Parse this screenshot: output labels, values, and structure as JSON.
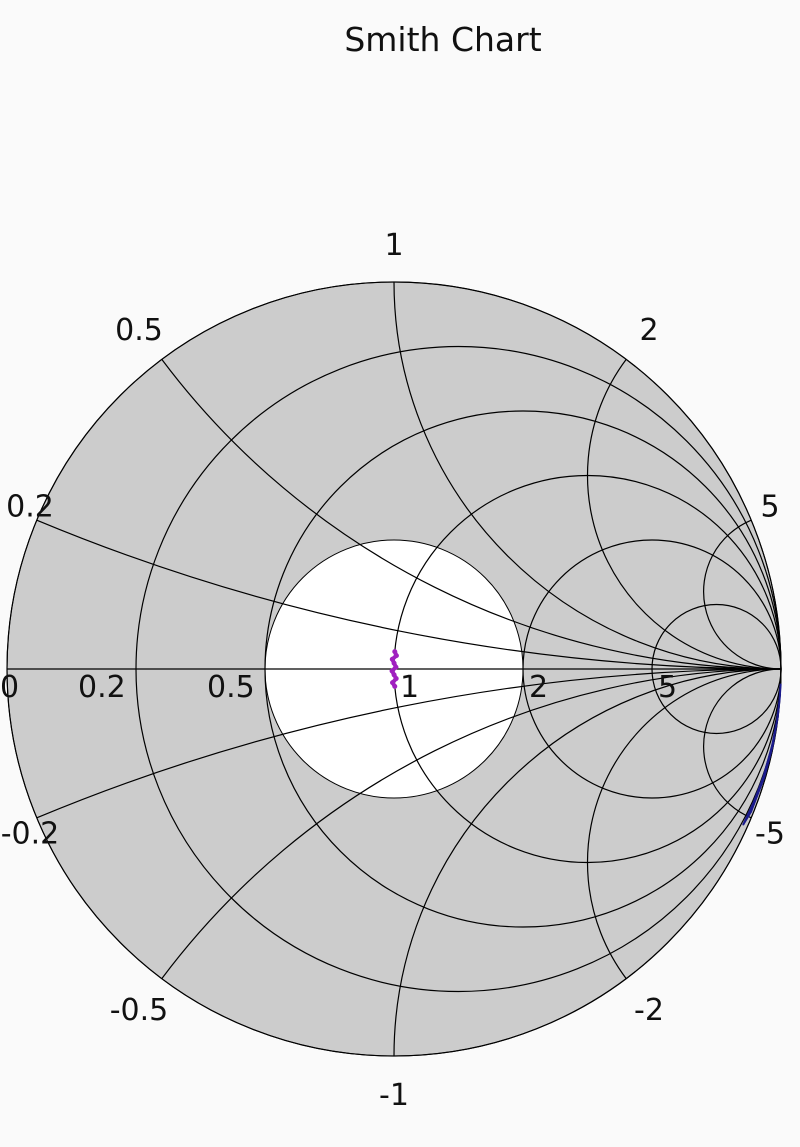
{
  "chart_data": {
    "type": "smith",
    "title": "Smith Chart",
    "background_color": "#cccccc",
    "highlight_region": {
      "max_vswr": 2,
      "color": "#ffffff"
    },
    "grid_color": "#000000",
    "resistance_circles": [
      0,
      0.2,
      0.5,
      1,
      2,
      5
    ],
    "reactance_arcs": [
      0.2,
      0.5,
      1,
      2,
      5,
      -0.2,
      -0.5,
      -1,
      -2,
      -5
    ],
    "real_axis_labels": [
      "0",
      "0.2",
      "0.5",
      "1",
      "2",
      "5"
    ],
    "real_axis_values": [
      0,
      0.2,
      0.5,
      1,
      2,
      5
    ],
    "reactance_labels": [
      "0.2",
      "0.5",
      "1",
      "2",
      "5",
      "-0.2",
      "-0.5",
      "-1",
      "-2",
      "-5"
    ],
    "series": [
      {
        "color": "#a020c0",
        "points": [
          {
            "r": 1.0,
            "x": 0.09
          },
          {
            "r": 1.01,
            "x": 0.07
          },
          {
            "r": 0.99,
            "x": 0.05
          },
          {
            "r": 1.0,
            "x": 0.03
          },
          {
            "r": 1.01,
            "x": 0.01
          },
          {
            "r": 0.99,
            "x": -0.01
          },
          {
            "r": 1.0,
            "x": -0.03
          },
          {
            "r": 1.01,
            "x": -0.05
          },
          {
            "r": 0.99,
            "x": -0.07
          },
          {
            "r": 1.0,
            "x": -0.09
          }
        ]
      },
      {
        "color": "#1a1a8c",
        "points": [
          {
            "r": 0.2,
            "x": -50
          },
          {
            "r": 0.18,
            "x": -25
          },
          {
            "r": 0.16,
            "x": -15
          },
          {
            "r": 0.15,
            "x": -10
          },
          {
            "r": 0.14,
            "x": -7
          },
          {
            "r": 0.14,
            "x": -5.5
          },
          {
            "r": 0.14,
            "x": -4.7
          },
          {
            "r": 0.09,
            "x": -5.2
          },
          {
            "r": 0.08,
            "x": -7
          },
          {
            "r": 0.08,
            "x": -10
          },
          {
            "r": 0.09,
            "x": -16
          },
          {
            "r": 0.1,
            "x": -30
          }
        ]
      }
    ]
  }
}
